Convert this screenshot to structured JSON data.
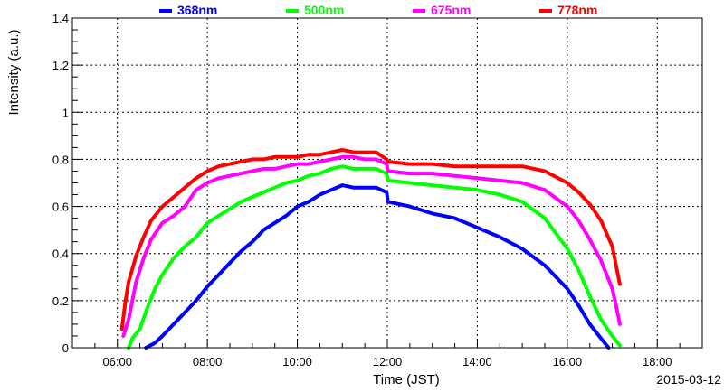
{
  "chart_data": {
    "type": "line",
    "title": "",
    "xlabel": "Time (JST)",
    "ylabel": "Intensity (a.u.)",
    "date": "2015-03-12",
    "xlim": [
      "05:00",
      "19:00"
    ],
    "ylim": [
      0,
      1.4
    ],
    "x_ticks": [
      "06:00",
      "08:00",
      "10:00",
      "12:00",
      "14:00",
      "16:00",
      "18:00"
    ],
    "y_ticks": [
      "0",
      "0.2",
      "0.4",
      "0.6",
      "0.8",
      "1",
      "1.2",
      "1.4"
    ],
    "grid": true,
    "legend_position": "top",
    "series": [
      {
        "name": "368nm",
        "color": "#0000ff",
        "x": [
          "06:38",
          "06:50",
          "07:00",
          "07:15",
          "07:30",
          "07:45",
          "08:00",
          "08:15",
          "08:30",
          "08:45",
          "09:00",
          "09:15",
          "09:30",
          "09:45",
          "10:00",
          "10:15",
          "10:30",
          "10:45",
          "11:00",
          "11:15",
          "11:30",
          "11:45",
          "11:59",
          "12:01",
          "12:30",
          "13:00",
          "13:30",
          "14:00",
          "14:30",
          "15:00",
          "15:30",
          "16:00",
          "16:15",
          "16:30",
          "16:45",
          "16:55"
        ],
        "y": [
          0.0,
          0.02,
          0.05,
          0.1,
          0.15,
          0.2,
          0.26,
          0.31,
          0.36,
          0.41,
          0.45,
          0.5,
          0.53,
          0.56,
          0.6,
          0.62,
          0.65,
          0.67,
          0.69,
          0.68,
          0.68,
          0.68,
          0.66,
          0.62,
          0.6,
          0.57,
          0.55,
          0.51,
          0.47,
          0.42,
          0.35,
          0.25,
          0.18,
          0.1,
          0.04,
          0.0
        ]
      },
      {
        "name": "500nm",
        "color": "#00ff00",
        "x": [
          "06:15",
          "06:20",
          "06:30",
          "06:40",
          "06:50",
          "07:00",
          "07:15",
          "07:30",
          "07:45",
          "08:00",
          "08:15",
          "08:30",
          "08:45",
          "09:00",
          "09:15",
          "09:30",
          "09:45",
          "10:00",
          "10:15",
          "10:30",
          "10:45",
          "11:00",
          "11:15",
          "11:30",
          "11:45",
          "11:59",
          "12:01",
          "12:30",
          "13:00",
          "13:30",
          "14:00",
          "14:30",
          "15:00",
          "15:30",
          "16:00",
          "16:15",
          "16:30",
          "16:45",
          "17:00",
          "17:05",
          "17:10"
        ],
        "y": [
          0.0,
          0.04,
          0.08,
          0.17,
          0.25,
          0.31,
          0.38,
          0.43,
          0.47,
          0.53,
          0.56,
          0.59,
          0.62,
          0.64,
          0.66,
          0.68,
          0.7,
          0.71,
          0.73,
          0.74,
          0.76,
          0.77,
          0.76,
          0.76,
          0.76,
          0.74,
          0.71,
          0.7,
          0.69,
          0.68,
          0.67,
          0.65,
          0.62,
          0.55,
          0.42,
          0.33,
          0.22,
          0.12,
          0.05,
          0.03,
          0.01
        ]
      },
      {
        "name": "675nm",
        "color": "#ff00ff",
        "x": [
          "06:08",
          "06:15",
          "06:25",
          "06:35",
          "06:45",
          "07:00",
          "07:15",
          "07:30",
          "07:45",
          "08:00",
          "08:15",
          "08:30",
          "08:45",
          "09:00",
          "09:15",
          "09:30",
          "09:45",
          "10:00",
          "10:15",
          "10:30",
          "10:45",
          "11:00",
          "11:15",
          "11:30",
          "11:45",
          "11:59",
          "12:01",
          "12:30",
          "13:00",
          "13:30",
          "14:00",
          "14:30",
          "15:00",
          "15:30",
          "16:00",
          "16:15",
          "16:30",
          "16:45",
          "17:00",
          "17:05",
          "17:10"
        ],
        "y": [
          0.05,
          0.12,
          0.28,
          0.38,
          0.46,
          0.53,
          0.56,
          0.6,
          0.67,
          0.7,
          0.72,
          0.73,
          0.74,
          0.75,
          0.76,
          0.76,
          0.77,
          0.78,
          0.78,
          0.79,
          0.8,
          0.81,
          0.81,
          0.8,
          0.8,
          0.78,
          0.75,
          0.74,
          0.74,
          0.73,
          0.72,
          0.71,
          0.7,
          0.67,
          0.6,
          0.54,
          0.46,
          0.37,
          0.25,
          0.18,
          0.1
        ]
      },
      {
        "name": "778nm",
        "color": "#ff0000",
        "x": [
          "06:06",
          "06:10",
          "06:15",
          "06:25",
          "06:35",
          "06:45",
          "07:00",
          "07:15",
          "07:30",
          "07:45",
          "08:00",
          "08:15",
          "08:30",
          "08:45",
          "09:00",
          "09:15",
          "09:30",
          "09:45",
          "10:00",
          "10:15",
          "10:30",
          "10:45",
          "11:00",
          "11:15",
          "11:30",
          "11:45",
          "11:59",
          "12:01",
          "12:30",
          "13:00",
          "13:30",
          "14:00",
          "14:30",
          "15:00",
          "15:30",
          "16:00",
          "16:15",
          "16:30",
          "16:45",
          "17:00",
          "17:05",
          "17:10"
        ],
        "y": [
          0.08,
          0.18,
          0.28,
          0.39,
          0.47,
          0.54,
          0.6,
          0.64,
          0.68,
          0.72,
          0.75,
          0.77,
          0.78,
          0.79,
          0.8,
          0.8,
          0.81,
          0.81,
          0.81,
          0.82,
          0.82,
          0.83,
          0.84,
          0.83,
          0.83,
          0.83,
          0.8,
          0.79,
          0.78,
          0.78,
          0.77,
          0.77,
          0.77,
          0.77,
          0.75,
          0.7,
          0.66,
          0.61,
          0.54,
          0.43,
          0.35,
          0.27
        ]
      }
    ]
  }
}
